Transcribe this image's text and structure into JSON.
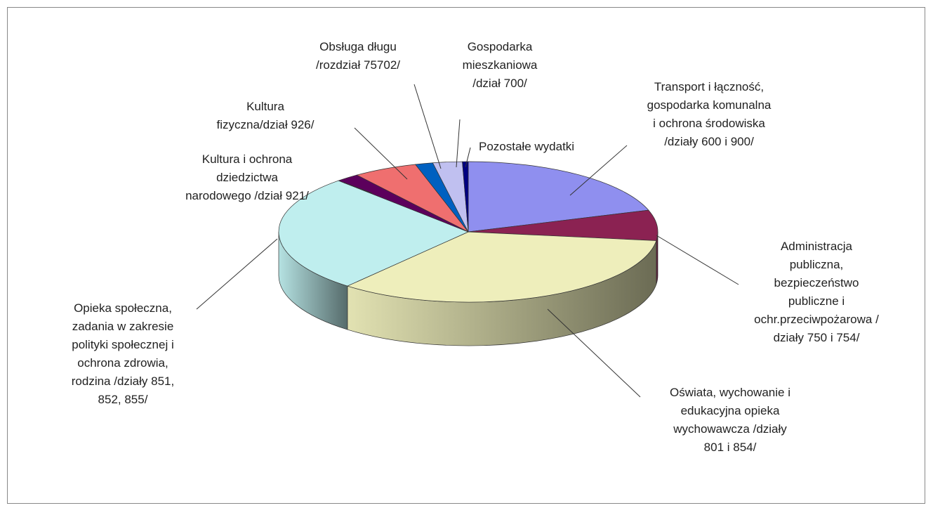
{
  "chart_data": {
    "type": "pie3d",
    "categories": [
      "Transport i łączność,\ngospodarka komunalna\ni ochrona środowiska\n/działy 600 i 900/",
      "Administracja\npubliczna,\nbezpieczeństwo\npubliczne i\nochr.przeciwpożarowa /\ndziały 750 i 754/",
      "Oświata, wychowanie i\nedukacyjna opieka\nwychowawcza /działy\n801 i 854/",
      "Opieka społeczna,\nzadania w zakresie\npolityki społecznej i\nochrona zdrowia,\nrodzina /działy 851,\n852, 855/",
      "Kultura i ochrona\ndziedzictwa\nnarodowego /dział 921/",
      "Kultura\nfizyczna/dział 926/",
      "Obsługa długu\n/rozdział 75702/",
      "Gospodarka\nmieszkaniowa\n/dział 700/",
      "Pozostałe wydatki"
    ],
    "values": [
      20,
      7,
      34,
      27,
      2,
      5.5,
      1.5,
      2.5,
      0.5
    ],
    "colors": [
      "#8f8fef",
      "#8b2252",
      "#eeeebb",
      "#bfeeee",
      "#5c005c",
      "#ef6f6f",
      "#0060c0",
      "#c0c0f0",
      "#000080"
    ]
  }
}
